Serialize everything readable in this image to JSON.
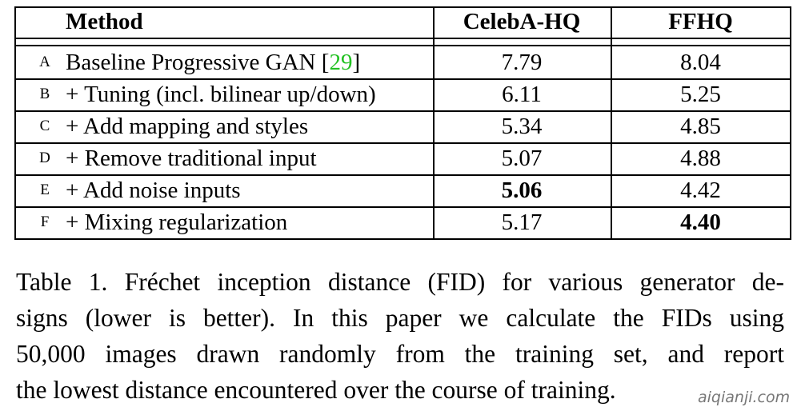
{
  "table": {
    "header": {
      "method": "Method",
      "celeba": "CelebA-HQ",
      "ffhq": "FFHQ"
    },
    "rows": [
      {
        "id": "A",
        "method": "Baseline Progressive GAN",
        "citation": [
          "[",
          "29",
          "]"
        ],
        "celeba": {
          "text": "7.79",
          "bold": false
        },
        "ffhq": {
          "text": "8.04",
          "bold": false
        }
      },
      {
        "id": "B",
        "method": "+ Tuning (incl. bilinear up/down)",
        "celeba": {
          "text": "6.11",
          "bold": false
        },
        "ffhq": {
          "text": "5.25",
          "bold": false
        }
      },
      {
        "id": "C",
        "method": "+ Add mapping and styles",
        "celeba": {
          "text": "5.34",
          "bold": false
        },
        "ffhq": {
          "text": "4.85",
          "bold": false
        }
      },
      {
        "id": "D",
        "method": "+ Remove traditional input",
        "celeba": {
          "text": "5.07",
          "bold": false
        },
        "ffhq": {
          "text": "4.88",
          "bold": false
        }
      },
      {
        "id": "E",
        "method": "+ Add noise inputs",
        "celeba": {
          "text": "5.06",
          "bold": true
        },
        "ffhq": {
          "text": "4.42",
          "bold": false
        }
      },
      {
        "id": "F",
        "method": "+ Mixing regularization",
        "celeba": {
          "text": "5.17",
          "bold": false
        },
        "ffhq": {
          "text": "4.40",
          "bold": true
        }
      }
    ]
  },
  "caption": {
    "lines": [
      "Table 1. Fréchet inception distance (FID) for various generator de-",
      "signs (lower is better).  In this paper we calculate the FIDs using",
      "50,000 images drawn randomly from the training set, and report",
      "the lowest distance encountered over the course of training."
    ]
  },
  "watermark": "aiqianji.com"
}
